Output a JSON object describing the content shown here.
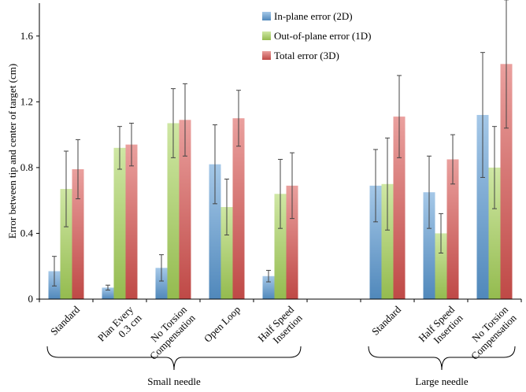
{
  "chart_data": {
    "type": "bar",
    "ylabel": "Error between tip and center of target (cm)",
    "ylim": [
      0,
      1.8
    ],
    "yticks": [
      "0",
      "0.4",
      "0.8",
      "1.2",
      "1.6"
    ],
    "categories": [
      "Standard",
      "Plan Every\n0.3 cm",
      "No Torsion\nCompensation",
      "Open Loop",
      "Half Speed\nInsertion",
      "",
      "Standard",
      "Half Speed\nInsertion",
      "No Torsion\nCompensation"
    ],
    "series": [
      {
        "name": "In-plane error (2D)",
        "color": "#5b9bd5",
        "values": [
          0.17,
          0.07,
          0.19,
          0.82,
          0.14,
          null,
          0.69,
          0.65,
          1.12
        ],
        "errors": [
          0.09,
          0.015,
          0.08,
          0.24,
          0.035,
          null,
          0.22,
          0.22,
          0.38
        ]
      },
      {
        "name": "Out-of-plane error (1D)",
        "color": "#a8d45a",
        "values": [
          0.67,
          0.92,
          1.07,
          0.56,
          0.64,
          null,
          0.7,
          0.4,
          0.8
        ],
        "errors": [
          0.23,
          0.13,
          0.21,
          0.17,
          0.21,
          null,
          0.28,
          0.12,
          0.25
        ]
      },
      {
        "name": "Total error (3D)",
        "color": "#d9534f",
        "values": [
          0.79,
          0.94,
          1.09,
          1.1,
          0.69,
          null,
          1.11,
          0.85,
          1.43
        ],
        "errors": [
          0.18,
          0.13,
          0.22,
          0.17,
          0.2,
          null,
          0.25,
          0.15,
          0.39
        ]
      }
    ],
    "groups": [
      {
        "label": "Small needle",
        "from": 0,
        "to": 4
      },
      {
        "label": "Large needle",
        "from": 6,
        "to": 8
      }
    ],
    "legend": "top-center",
    "grid": false
  }
}
